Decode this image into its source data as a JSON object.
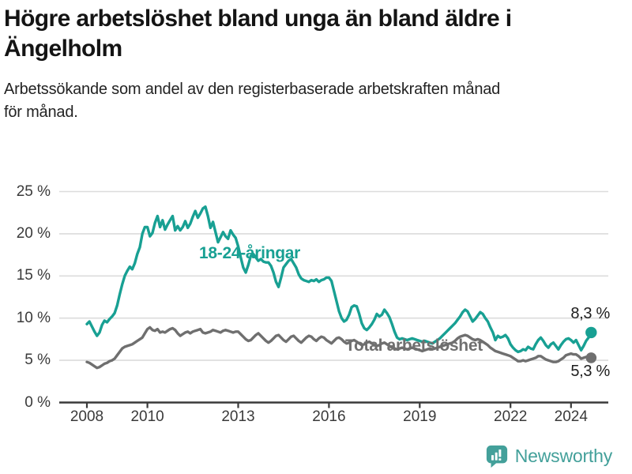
{
  "header": {
    "title": "Högre arbetslöshet bland unga än bland äldre i Ängelholm",
    "title_lines": [
      "Högre arbetslöshet bland unga än bland äldre i",
      "Ängelholm"
    ],
    "subtitle": "Arbetssökande som andel av den registerbaserade arbetskraften månad för månad.",
    "subtitle_lines": [
      "Arbetssökande som andel av den registerbaserade arbetskraften månad",
      "för månad."
    ]
  },
  "colors": {
    "accent_teal": "#18a093",
    "series_gray": "#6f6f6f",
    "grid": "#dcdcdc",
    "axis": "#3a3a3a",
    "value_label": "#1d1d1d",
    "logo_teal": "#43a09a"
  },
  "footer": {
    "logo_text": "Newsworthy"
  },
  "chart_data": {
    "type": "line",
    "title": "Högre arbetslöshet bland unga än bland äldre i Ängelholm",
    "subtitle": "Arbetssökande som andel av den registerbaserade arbetskraften månad för månad.",
    "unit": "%",
    "frequency": "monthly",
    "x_start": "2008-01",
    "x_end": "2024-09",
    "ylim": [
      0,
      25
    ],
    "grid": true,
    "legend_position": "inline-labels",
    "yticks": [
      {
        "value": 0,
        "label": "0 %"
      },
      {
        "value": 5,
        "label": "5 %"
      },
      {
        "value": 10,
        "label": "10 %"
      },
      {
        "value": 15,
        "label": "15 %"
      },
      {
        "value": 20,
        "label": "20 %"
      },
      {
        "value": 25,
        "label": "25 %"
      }
    ],
    "xticks": [
      {
        "value": 2008,
        "label": "2008"
      },
      {
        "value": 2010,
        "label": "2010"
      },
      {
        "value": 2013,
        "label": "2013"
      },
      {
        "value": 2016,
        "label": "2016"
      },
      {
        "value": 2019,
        "label": "2019"
      },
      {
        "value": 2022,
        "label": "2022"
      },
      {
        "value": 2024,
        "label": "2024"
      }
    ],
    "series": [
      {
        "name": "18-24-åringar",
        "color": "#18a093",
        "end_label": "8,3 %",
        "end_value": 8.3,
        "values": [
          9.3,
          9.6,
          9.0,
          8.4,
          7.9,
          8.3,
          9.2,
          9.7,
          9.5,
          9.9,
          10.2,
          10.6,
          11.5,
          12.8,
          14.0,
          15.0,
          15.6,
          16.1,
          15.8,
          16.5,
          17.6,
          18.4,
          20.0,
          20.8,
          20.8,
          19.7,
          20.1,
          21.3,
          22.1,
          20.8,
          21.6,
          20.5,
          21.1,
          21.6,
          22.1,
          20.4,
          20.9,
          20.4,
          20.8,
          21.5,
          20.7,
          21.2,
          22.0,
          22.7,
          21.9,
          22.4,
          23.0,
          23.2,
          22.1,
          20.7,
          21.4,
          20.2,
          19.0,
          19.6,
          20.2,
          19.7,
          19.4,
          20.4,
          19.9,
          19.5,
          18.5,
          17.2,
          16.0,
          15.4,
          16.3,
          17.4,
          17.6,
          17.2,
          16.8,
          17.0,
          16.7,
          16.6,
          16.6,
          16.2,
          15.4,
          14.3,
          13.7,
          14.8,
          16.0,
          16.4,
          16.8,
          17.0,
          16.5,
          16.0,
          15.2,
          14.7,
          14.5,
          14.4,
          14.3,
          14.5,
          14.4,
          14.6,
          14.3,
          14.5,
          14.6,
          14.8,
          14.8,
          14.4,
          13.2,
          12.0,
          10.8,
          10.0,
          9.6,
          9.8,
          10.4,
          11.3,
          11.5,
          11.4,
          10.5,
          9.4,
          8.8,
          8.6,
          8.9,
          9.3,
          9.8,
          10.5,
          10.2,
          10.4,
          11.0,
          10.6,
          10.1,
          9.3,
          8.4,
          7.7,
          7.5,
          7.6,
          7.5,
          7.4,
          7.5,
          7.6,
          7.5,
          7.4,
          7.3,
          7.2,
          7.3,
          7.2,
          7.1,
          7.0,
          7.2,
          7.4,
          7.6,
          7.9,
          8.2,
          8.5,
          8.8,
          9.1,
          9.4,
          9.8,
          10.2,
          10.7,
          11.0,
          10.8,
          10.2,
          9.6,
          9.9,
          10.3,
          10.7,
          10.5,
          10.0,
          9.6,
          8.9,
          8.3,
          7.4,
          7.9,
          7.7,
          7.8,
          8.0,
          7.6,
          6.9,
          6.5,
          6.2,
          6.0,
          6.1,
          6.3,
          6.2,
          6.6,
          6.4,
          6.3,
          6.9,
          7.4,
          7.7,
          7.3,
          6.8,
          6.5,
          6.9,
          7.1,
          6.7,
          6.3,
          6.8,
          7.2,
          7.5,
          7.6,
          7.4,
          7.1,
          7.4,
          6.8,
          6.2,
          6.7,
          7.3,
          7.7,
          8.3
        ]
      },
      {
        "name": "Total arbetslöshet",
        "color": "#6f6f6f",
        "end_label": "5,3 %",
        "end_value": 5.3,
        "values": [
          4.8,
          4.7,
          4.5,
          4.3,
          4.1,
          4.2,
          4.4,
          4.6,
          4.7,
          4.9,
          5.0,
          5.2,
          5.6,
          6.0,
          6.4,
          6.6,
          6.7,
          6.8,
          6.9,
          7.1,
          7.3,
          7.5,
          7.7,
          8.2,
          8.7,
          8.9,
          8.6,
          8.5,
          8.7,
          8.3,
          8.4,
          8.3,
          8.5,
          8.7,
          8.8,
          8.6,
          8.2,
          7.9,
          8.1,
          8.3,
          8.4,
          8.2,
          8.4,
          8.5,
          8.6,
          8.7,
          8.3,
          8.2,
          8.3,
          8.4,
          8.6,
          8.5,
          8.4,
          8.3,
          8.5,
          8.6,
          8.5,
          8.4,
          8.3,
          8.4,
          8.4,
          8.1,
          7.8,
          7.5,
          7.3,
          7.4,
          7.7,
          8.0,
          8.2,
          7.9,
          7.6,
          7.3,
          7.1,
          7.3,
          7.6,
          7.9,
          8.0,
          7.7,
          7.4,
          7.2,
          7.5,
          7.8,
          7.9,
          7.6,
          7.3,
          7.1,
          7.4,
          7.7,
          7.9,
          7.8,
          7.5,
          7.3,
          7.6,
          7.8,
          7.7,
          7.4,
          7.2,
          7.0,
          7.3,
          7.6,
          7.7,
          7.5,
          7.2,
          7.0,
          7.1,
          7.3,
          7.4,
          7.2,
          7.0,
          6.8,
          6.9,
          7.1,
          7.2,
          7.0,
          6.8,
          6.7,
          6.8,
          7.0,
          7.1,
          6.9,
          6.7,
          6.5,
          6.4,
          6.3,
          6.4,
          6.5,
          6.4,
          6.3,
          6.4,
          6.5,
          6.4,
          6.3,
          6.2,
          6.1,
          6.2,
          6.3,
          6.4,
          6.3,
          6.4,
          6.5,
          6.6,
          6.7,
          6.8,
          6.9,
          7.0,
          7.1,
          7.3,
          7.6,
          7.8,
          7.9,
          8.0,
          7.9,
          7.7,
          7.5,
          7.4,
          7.5,
          7.4,
          7.2,
          7.0,
          6.8,
          6.5,
          6.3,
          6.1,
          6.0,
          5.9,
          5.8,
          5.7,
          5.6,
          5.5,
          5.3,
          5.1,
          4.9,
          4.9,
          5.0,
          4.9,
          5.0,
          5.1,
          5.2,
          5.3,
          5.5,
          5.5,
          5.3,
          5.1,
          5.0,
          4.9,
          4.8,
          4.8,
          4.9,
          5.1,
          5.3,
          5.6,
          5.7,
          5.8,
          5.7,
          5.7,
          5.5,
          5.2,
          5.3,
          5.4,
          5.4,
          5.3
        ]
      }
    ]
  }
}
